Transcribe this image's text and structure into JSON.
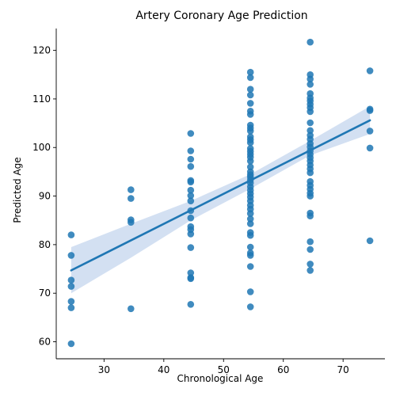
{
  "chart_data": {
    "type": "scatter",
    "title": "Artery Coronary Age Prediction",
    "xlabel": "Chronological Age",
    "ylabel": "Predicted Age",
    "xlim": [
      22,
      77
    ],
    "ylim": [
      56.5,
      124.5
    ],
    "xticks": [
      30,
      40,
      50,
      60,
      70
    ],
    "yticks": [
      60,
      70,
      80,
      90,
      100,
      110,
      120
    ],
    "grid": false,
    "point_color": "#1f77b4",
    "line_color": "#1f77b4",
    "ci_color": "#aec7e8",
    "points": [
      {
        "x": 24.5,
        "y": 82.0
      },
      {
        "x": 24.5,
        "y": 77.8
      },
      {
        "x": 24.5,
        "y": 72.7
      },
      {
        "x": 24.5,
        "y": 71.4
      },
      {
        "x": 24.5,
        "y": 68.3
      },
      {
        "x": 24.5,
        "y": 67.0
      },
      {
        "x": 24.5,
        "y": 59.6
      },
      {
        "x": 34.5,
        "y": 91.3
      },
      {
        "x": 34.5,
        "y": 89.5
      },
      {
        "x": 34.5,
        "y": 85.1
      },
      {
        "x": 34.5,
        "y": 84.6
      },
      {
        "x": 34.5,
        "y": 66.8
      },
      {
        "x": 44.5,
        "y": 102.9
      },
      {
        "x": 44.5,
        "y": 99.3
      },
      {
        "x": 44.5,
        "y": 97.6
      },
      {
        "x": 44.5,
        "y": 96.1
      },
      {
        "x": 44.5,
        "y": 93.2
      },
      {
        "x": 44.5,
        "y": 92.9
      },
      {
        "x": 44.5,
        "y": 91.2
      },
      {
        "x": 44.5,
        "y": 90.1
      },
      {
        "x": 44.5,
        "y": 89.0
      },
      {
        "x": 44.5,
        "y": 87.0
      },
      {
        "x": 44.5,
        "y": 85.5
      },
      {
        "x": 44.5,
        "y": 83.7
      },
      {
        "x": 44.5,
        "y": 83.1
      },
      {
        "x": 44.5,
        "y": 82.2
      },
      {
        "x": 44.5,
        "y": 79.4
      },
      {
        "x": 44.5,
        "y": 74.2
      },
      {
        "x": 44.5,
        "y": 73.2
      },
      {
        "x": 44.5,
        "y": 73.0
      },
      {
        "x": 44.5,
        "y": 67.7
      },
      {
        "x": 54.5,
        "y": 115.5
      },
      {
        "x": 54.5,
        "y": 114.4
      },
      {
        "x": 54.5,
        "y": 112.0
      },
      {
        "x": 54.5,
        "y": 110.8
      },
      {
        "x": 54.5,
        "y": 109.1
      },
      {
        "x": 54.5,
        "y": 107.5
      },
      {
        "x": 54.5,
        "y": 106.8
      },
      {
        "x": 54.5,
        "y": 104.6
      },
      {
        "x": 54.5,
        "y": 104.0
      },
      {
        "x": 54.5,
        "y": 103.4
      },
      {
        "x": 54.5,
        "y": 102.2
      },
      {
        "x": 54.5,
        "y": 101.6
      },
      {
        "x": 54.5,
        "y": 101.0
      },
      {
        "x": 54.5,
        "y": 99.8
      },
      {
        "x": 54.5,
        "y": 99.2
      },
      {
        "x": 54.5,
        "y": 98.6
      },
      {
        "x": 54.5,
        "y": 98.0
      },
      {
        "x": 54.5,
        "y": 97.2
      },
      {
        "x": 54.5,
        "y": 96.0
      },
      {
        "x": 54.5,
        "y": 95.0
      },
      {
        "x": 54.5,
        "y": 94.4
      },
      {
        "x": 54.5,
        "y": 93.9
      },
      {
        "x": 54.5,
        "y": 93.3
      },
      {
        "x": 54.5,
        "y": 92.7
      },
      {
        "x": 54.5,
        "y": 91.9
      },
      {
        "x": 54.5,
        "y": 91.2
      },
      {
        "x": 54.5,
        "y": 90.5
      },
      {
        "x": 54.5,
        "y": 89.8
      },
      {
        "x": 54.5,
        "y": 89.0
      },
      {
        "x": 54.5,
        "y": 88.1
      },
      {
        "x": 54.5,
        "y": 87.3
      },
      {
        "x": 54.5,
        "y": 86.4
      },
      {
        "x": 54.5,
        "y": 85.3
      },
      {
        "x": 54.5,
        "y": 84.3
      },
      {
        "x": 54.5,
        "y": 82.5
      },
      {
        "x": 54.5,
        "y": 81.9
      },
      {
        "x": 54.5,
        "y": 79.5
      },
      {
        "x": 54.5,
        "y": 78.3
      },
      {
        "x": 54.5,
        "y": 77.8
      },
      {
        "x": 54.5,
        "y": 75.5
      },
      {
        "x": 54.5,
        "y": 70.3
      },
      {
        "x": 54.5,
        "y": 67.2
      },
      {
        "x": 64.5,
        "y": 121.7
      },
      {
        "x": 64.5,
        "y": 115.0
      },
      {
        "x": 64.5,
        "y": 114.1
      },
      {
        "x": 64.5,
        "y": 113.0
      },
      {
        "x": 64.5,
        "y": 111.1
      },
      {
        "x": 64.5,
        "y": 110.2
      },
      {
        "x": 64.5,
        "y": 109.6
      },
      {
        "x": 64.5,
        "y": 108.9
      },
      {
        "x": 64.5,
        "y": 108.2
      },
      {
        "x": 64.5,
        "y": 107.4
      },
      {
        "x": 64.5,
        "y": 105.1
      },
      {
        "x": 64.5,
        "y": 103.5
      },
      {
        "x": 64.5,
        "y": 102.5
      },
      {
        "x": 64.5,
        "y": 101.7
      },
      {
        "x": 64.5,
        "y": 100.8
      },
      {
        "x": 64.5,
        "y": 100.1
      },
      {
        "x": 64.5,
        "y": 99.3
      },
      {
        "x": 64.5,
        "y": 98.6
      },
      {
        "x": 64.5,
        "y": 97.9
      },
      {
        "x": 64.5,
        "y": 97.2
      },
      {
        "x": 64.5,
        "y": 96.4
      },
      {
        "x": 64.5,
        "y": 95.6
      },
      {
        "x": 64.5,
        "y": 94.8
      },
      {
        "x": 64.5,
        "y": 93.0
      },
      {
        "x": 64.5,
        "y": 92.2
      },
      {
        "x": 64.5,
        "y": 91.4
      },
      {
        "x": 64.5,
        "y": 90.6
      },
      {
        "x": 64.5,
        "y": 90.0
      },
      {
        "x": 64.5,
        "y": 86.5
      },
      {
        "x": 64.5,
        "y": 85.9
      },
      {
        "x": 64.5,
        "y": 80.6
      },
      {
        "x": 64.5,
        "y": 79.0
      },
      {
        "x": 64.5,
        "y": 76.0
      },
      {
        "x": 64.5,
        "y": 74.7
      },
      {
        "x": 74.5,
        "y": 115.8
      },
      {
        "x": 74.5,
        "y": 107.9
      },
      {
        "x": 74.5,
        "y": 107.6
      },
      {
        "x": 74.5,
        "y": 103.4
      },
      {
        "x": 74.5,
        "y": 99.9
      },
      {
        "x": 74.5,
        "y": 80.8
      }
    ],
    "regression": {
      "x": [
        24.5,
        74.5
      ],
      "y": [
        74.7,
        105.6
      ]
    },
    "ci_band": {
      "x": [
        24.5,
        34.5,
        44.5,
        54.5,
        64.5,
        74.5
      ],
      "upper": [
        79.5,
        84.3,
        89.0,
        94.5,
        101.4,
        108.5
      ],
      "lower": [
        70.0,
        77.3,
        85.0,
        91.5,
        98.4,
        102.8
      ]
    }
  }
}
